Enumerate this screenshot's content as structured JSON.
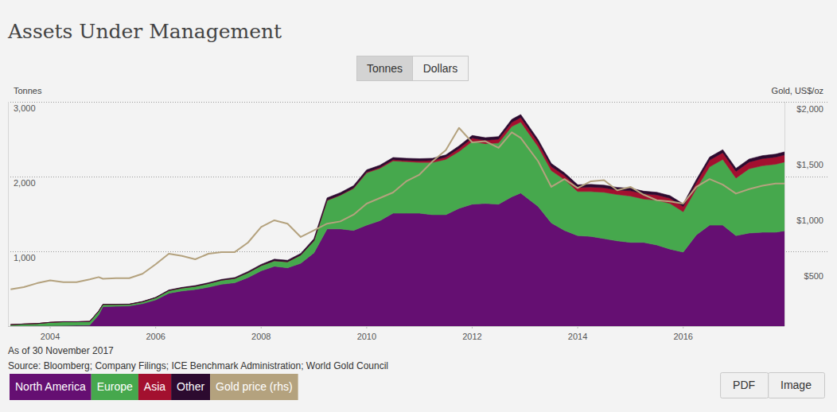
{
  "chart_data": {
    "type": "area",
    "title": "Assets Under Management",
    "y_label": "Tonnes",
    "y2_label": "Gold, US$/oz",
    "note": "As of 30 November 2017",
    "source": "Source: Bloomberg; Company Filings; ICE Benchmark Administration; World Gold Council",
    "stacked": true,
    "grid": true,
    "legend": "bottom",
    "xlim": [
      2003.2,
      2017.92
    ],
    "xticks": [
      2004,
      2006,
      2008,
      2010,
      2012,
      2014,
      2016
    ],
    "ylim": [
      0,
      3000
    ],
    "yticks": [
      {
        "value": 1000,
        "label": "1,000"
      },
      {
        "value": 2000,
        "label": "2,000"
      },
      {
        "value": 3000,
        "label": "3,000"
      }
    ],
    "y2lim": [
      0,
      2014
    ],
    "y2ticks": [
      {
        "value": 500,
        "label": "$500"
      },
      {
        "value": 1000,
        "label": "$1,000"
      },
      {
        "value": 1500,
        "label": "$1,500"
      },
      {
        "value": 2000,
        "label": "$2,000"
      }
    ],
    "x": [
      2003.25,
      2003.5,
      2003.75,
      2004,
      2004.25,
      2004.5,
      2004.75,
      2004.92,
      2005,
      2005.25,
      2005.5,
      2005.75,
      2006,
      2006.25,
      2006.5,
      2006.75,
      2007,
      2007.25,
      2007.5,
      2007.75,
      2008,
      2008.25,
      2008.5,
      2008.75,
      2009,
      2009.25,
      2009.5,
      2009.75,
      2010,
      2010.25,
      2010.5,
      2010.75,
      2011,
      2011.25,
      2011.5,
      2011.75,
      2012,
      2012.25,
      2012.5,
      2012.75,
      2012.92,
      2013.25,
      2013.5,
      2013.75,
      2014,
      2014.25,
      2014.5,
      2014.75,
      2015,
      2015.25,
      2015.5,
      2015.75,
      2016,
      2016.25,
      2016.5,
      2016.75,
      2017,
      2017.25,
      2017.5,
      2017.75,
      2017.92
    ],
    "series": [
      {
        "name": "North America",
        "color": "#650f72",
        "type": "area",
        "values": [
          2,
          3,
          4,
          5,
          8,
          10,
          12,
          150,
          260,
          265,
          270,
          300,
          350,
          440,
          470,
          490,
          520,
          560,
          580,
          650,
          740,
          800,
          780,
          840,
          980,
          1300,
          1300,
          1280,
          1350,
          1410,
          1510,
          1510,
          1510,
          1490,
          1490,
          1575,
          1630,
          1640,
          1630,
          1730,
          1780,
          1600,
          1380,
          1280,
          1210,
          1200,
          1170,
          1140,
          1120,
          1120,
          1085,
          1030,
          990,
          1220,
          1350,
          1350,
          1210,
          1245,
          1255,
          1255,
          1275
        ]
      },
      {
        "name": "Europe",
        "color": "#46a84d",
        "type": "area",
        "values": [
          18,
          25,
          30,
          45,
          50,
          48,
          50,
          50,
          30,
          25,
          22,
          25,
          30,
          35,
          40,
          42,
          50,
          55,
          58,
          65,
          70,
          75,
          80,
          110,
          160,
          380,
          450,
          560,
          700,
          700,
          700,
          690,
          680,
          700,
          740,
          760,
          840,
          800,
          820,
          940,
          950,
          800,
          700,
          680,
          590,
          600,
          620,
          620,
          620,
          580,
          600,
          610,
          540,
          620,
          780,
          880,
          770,
          860,
          890,
          910,
          920
        ]
      },
      {
        "name": "Asia",
        "color": "#a3102f",
        "type": "area",
        "values": [
          0,
          0,
          0,
          0,
          0,
          0,
          0,
          0,
          0,
          0,
          0,
          0,
          0,
          0,
          0,
          0,
          0,
          0,
          0,
          0,
          0,
          0,
          1,
          2,
          3,
          5,
          5,
          8,
          10,
          12,
          15,
          15,
          20,
          25,
          30,
          40,
          45,
          45,
          50,
          55,
          60,
          55,
          55,
          55,
          55,
          60,
          60,
          60,
          70,
          70,
          70,
          70,
          70,
          80,
          90,
          90,
          90,
          90,
          95,
          95,
          95
        ]
      },
      {
        "name": "Other",
        "color": "#2c0a2f",
        "type": "area",
        "values": [
          0,
          0,
          0,
          1,
          2,
          2,
          2,
          2,
          3,
          3,
          3,
          5,
          5,
          8,
          8,
          10,
          10,
          10,
          12,
          15,
          15,
          20,
          20,
          20,
          25,
          30,
          30,
          30,
          30,
          30,
          30,
          30,
          30,
          30,
          30,
          35,
          35,
          35,
          35,
          40,
          40,
          40,
          40,
          35,
          35,
          35,
          35,
          35,
          35,
          35,
          35,
          35,
          35,
          40,
          40,
          40,
          40,
          40,
          40,
          40,
          40
        ]
      },
      {
        "name": "Gold price (rhs)",
        "color": "#b4a27e",
        "type": "line",
        "axis": "y2",
        "values": [
          330,
          350,
          385,
          410,
          395,
          395,
          420,
          440,
          425,
          430,
          430,
          470,
          555,
          650,
          630,
          600,
          650,
          665,
          665,
          750,
          890,
          950,
          920,
          800,
          860,
          920,
          940,
          1000,
          1100,
          1150,
          1200,
          1300,
          1360,
          1480,
          1580,
          1780,
          1650,
          1660,
          1600,
          1740,
          1690,
          1480,
          1250,
          1320,
          1240,
          1300,
          1310,
          1220,
          1250,
          1180,
          1130,
          1120,
          1100,
          1250,
          1320,
          1270,
          1190,
          1230,
          1260,
          1280,
          1280
        ]
      }
    ]
  },
  "controls": {
    "toggle": [
      "Tonnes",
      "Dollars"
    ],
    "export": [
      "PDF",
      "Image"
    ]
  }
}
